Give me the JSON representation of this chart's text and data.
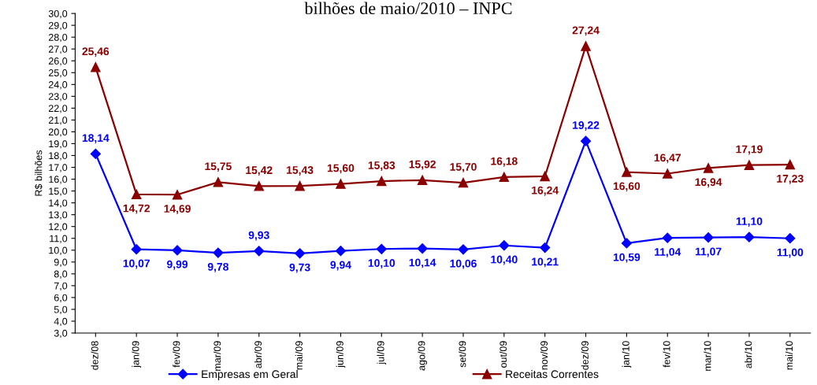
{
  "chart_data": {
    "type": "line",
    "title": "bilhões de maio/2010 – INPC",
    "ylabel": "R$ bilhões",
    "categories": [
      "dez/08",
      "jan/09",
      "fev/09",
      "mar/09",
      "abr/09",
      "mai/09",
      "jun/09",
      "jul/09",
      "ago/09",
      "set/09",
      "out/09",
      "nov/09",
      "dez/09",
      "jan/10",
      "fev/10",
      "mar/10",
      "abr/10",
      "mai/10"
    ],
    "series": [
      {
        "name": "Empresas em Geral",
        "color": "#0000ff",
        "marker": "diamond",
        "values": [
          18.14,
          10.07,
          9.99,
          9.78,
          9.93,
          9.73,
          9.94,
          10.1,
          10.14,
          10.06,
          10.4,
          10.21,
          19.22,
          10.59,
          11.04,
          11.07,
          11.1,
          11.0
        ],
        "value_labels": [
          "18,14",
          "10,07",
          "9,99",
          "9,78",
          "9,93",
          "9,73",
          "9,94",
          "10,10",
          "10,14",
          "10,06",
          "10,40",
          "10,21",
          "19,22",
          "10,59",
          "11,04",
          "11,07",
          "11,10",
          "11,00"
        ]
      },
      {
        "name": "Receitas Correntes",
        "color": "#8b0000",
        "marker": "triangle",
        "values": [
          25.46,
          14.72,
          14.69,
          15.75,
          15.42,
          15.43,
          15.6,
          15.83,
          15.92,
          15.7,
          16.18,
          16.24,
          27.24,
          16.6,
          16.47,
          16.94,
          17.19,
          17.23
        ],
        "value_labels": [
          "25,46",
          "14,72",
          "14,69",
          "15,75",
          "15,42",
          "15,43",
          "15,60",
          "15,83",
          "15,92",
          "15,70",
          "16,18",
          "16,24",
          "27,24",
          "16,60",
          "16,47",
          "16,94",
          "17,19",
          "17,23"
        ]
      }
    ],
    "ylim": [
      3.0,
      30.0
    ],
    "yticks": [
      {
        "value": 3,
        "label": "3,0"
      },
      {
        "value": 4,
        "label": "4,0"
      },
      {
        "value": 5,
        "label": "5,0"
      },
      {
        "value": 6,
        "label": "6,0"
      },
      {
        "value": 7,
        "label": "7,0"
      },
      {
        "value": 8,
        "label": "8,0"
      },
      {
        "value": 9,
        "label": "9,0"
      },
      {
        "value": 10,
        "label": "10,0"
      },
      {
        "value": 11,
        "label": "11,0"
      },
      {
        "value": 12,
        "label": "12,0"
      },
      {
        "value": 13,
        "label": "13,0"
      },
      {
        "value": 14,
        "label": "14,0"
      },
      {
        "value": 15,
        "label": "15,0"
      },
      {
        "value": 16,
        "label": "16,0"
      },
      {
        "value": 17,
        "label": "17,0"
      },
      {
        "value": 18,
        "label": "18,0"
      },
      {
        "value": 19,
        "label": "19,0"
      },
      {
        "value": 20,
        "label": "20,0"
      },
      {
        "value": 21,
        "label": "21,0"
      },
      {
        "value": 22,
        "label": "22,0"
      },
      {
        "value": 23,
        "label": "23,0"
      },
      {
        "value": 24,
        "label": "24,0"
      },
      {
        "value": 25,
        "label": "25,0"
      },
      {
        "value": 26,
        "label": "26,0"
      },
      {
        "value": 27,
        "label": "27,0"
      },
      {
        "value": 28,
        "label": "28,0"
      },
      {
        "value": 29,
        "label": "29,0"
      },
      {
        "value": 30,
        "label": "30,0"
      }
    ],
    "grid": false,
    "legend": "bottom",
    "line_style": "solid"
  }
}
